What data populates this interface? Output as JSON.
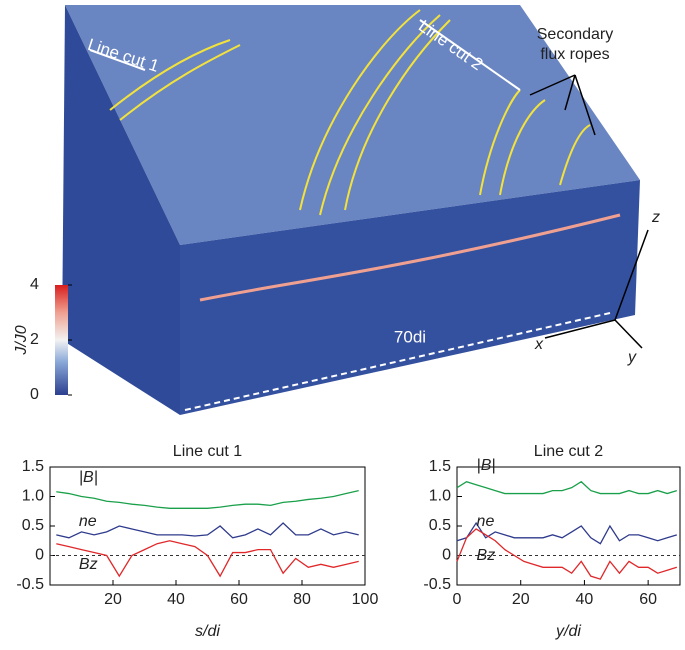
{
  "figure": {
    "line_cut_1": "Line cut 1",
    "line_cut_2": "Line cut 2",
    "secondary_label": [
      "Secondary",
      "flux ropes"
    ],
    "length_label": "70di",
    "axes": [
      "x",
      "y",
      "z"
    ],
    "colorbar": {
      "label": "J/J0",
      "lim": [
        0,
        4
      ],
      "ticks": [
        0,
        2,
        4
      ]
    }
  },
  "chart_data": [
    {
      "type": "line",
      "title": "Line cut 1",
      "x_label": "s/di",
      "x": [
        2,
        6,
        10,
        14,
        18,
        22,
        26,
        30,
        34,
        38,
        42,
        46,
        50,
        54,
        58,
        62,
        66,
        70,
        74,
        78,
        82,
        86,
        90,
        94,
        98
      ],
      "series": [
        {
          "name": "|B|",
          "color": "#1aa04a",
          "values": [
            1.08,
            1.05,
            1.0,
            0.97,
            0.92,
            0.9,
            0.87,
            0.85,
            0.82,
            0.8,
            0.8,
            0.8,
            0.8,
            0.82,
            0.85,
            0.87,
            0.87,
            0.85,
            0.9,
            0.92,
            0.95,
            0.97,
            1.0,
            1.05,
            1.1
          ]
        },
        {
          "name": "ne",
          "color": "#2e3a8c",
          "values": [
            0.35,
            0.3,
            0.4,
            0.35,
            0.4,
            0.5,
            0.45,
            0.4,
            0.35,
            0.35,
            0.35,
            0.33,
            0.35,
            0.5,
            0.3,
            0.35,
            0.45,
            0.35,
            0.55,
            0.35,
            0.35,
            0.45,
            0.35,
            0.4,
            0.35
          ]
        },
        {
          "name": "Bz",
          "color": "#e0282a",
          "values": [
            0.2,
            0.15,
            0.1,
            0.05,
            0.0,
            -0.35,
            0.0,
            0.1,
            0.2,
            0.25,
            0.2,
            0.15,
            0.0,
            -0.35,
            0.05,
            0.05,
            0.1,
            0.1,
            -0.3,
            -0.05,
            -0.2,
            -0.15,
            -0.2,
            -0.15,
            -0.1
          ]
        }
      ],
      "reference_line": 0,
      "xlim": [
        0,
        100
      ],
      "xticks": [
        20,
        40,
        60,
        80,
        100
      ],
      "ylim": [
        -0.5,
        1.5
      ],
      "yticks": [
        -0.5,
        0,
        0.5,
        {
          "value": 1,
          "label": "1.0"
        },
        1.5
      ]
    },
    {
      "type": "line",
      "title": "Line cut 2",
      "x_label": "y/di",
      "x": [
        0,
        3,
        6,
        9,
        12,
        15,
        18,
        21,
        24,
        27,
        30,
        33,
        36,
        39,
        42,
        45,
        48,
        51,
        54,
        57,
        60,
        63,
        66,
        69
      ],
      "series": [
        {
          "name": "|B|",
          "color": "#1aa04a",
          "values": [
            1.15,
            1.25,
            1.2,
            1.15,
            1.1,
            1.05,
            1.05,
            1.05,
            1.05,
            1.05,
            1.1,
            1.1,
            1.15,
            1.25,
            1.1,
            1.05,
            1.05,
            1.05,
            1.1,
            1.05,
            1.05,
            1.1,
            1.05,
            1.1
          ]
        },
        {
          "name": "ne",
          "color": "#2e3a8c",
          "values": [
            0.25,
            0.3,
            0.55,
            0.3,
            0.4,
            0.35,
            0.3,
            0.3,
            0.3,
            0.3,
            0.35,
            0.3,
            0.4,
            0.5,
            0.3,
            0.2,
            0.5,
            0.25,
            0.35,
            0.35,
            0.3,
            0.25,
            0.3,
            0.35
          ]
        },
        {
          "name": "Bz",
          "color": "#e0282a",
          "values": [
            -0.1,
            0.3,
            0.45,
            0.35,
            0.25,
            0.1,
            0.0,
            -0.1,
            -0.15,
            -0.2,
            -0.2,
            -0.2,
            -0.3,
            -0.1,
            -0.35,
            -0.4,
            -0.1,
            -0.3,
            -0.1,
            -0.2,
            -0.2,
            -0.3,
            -0.25,
            -0.2
          ]
        }
      ],
      "reference_line": 0,
      "xlim": [
        0,
        70
      ],
      "xticks": [
        0,
        20,
        40,
        60
      ],
      "ylim": [
        -0.5,
        1.5
      ],
      "yticks": [
        -0.5,
        0,
        0.5,
        {
          "value": 1,
          "label": "1.0"
        },
        1.5
      ]
    }
  ]
}
